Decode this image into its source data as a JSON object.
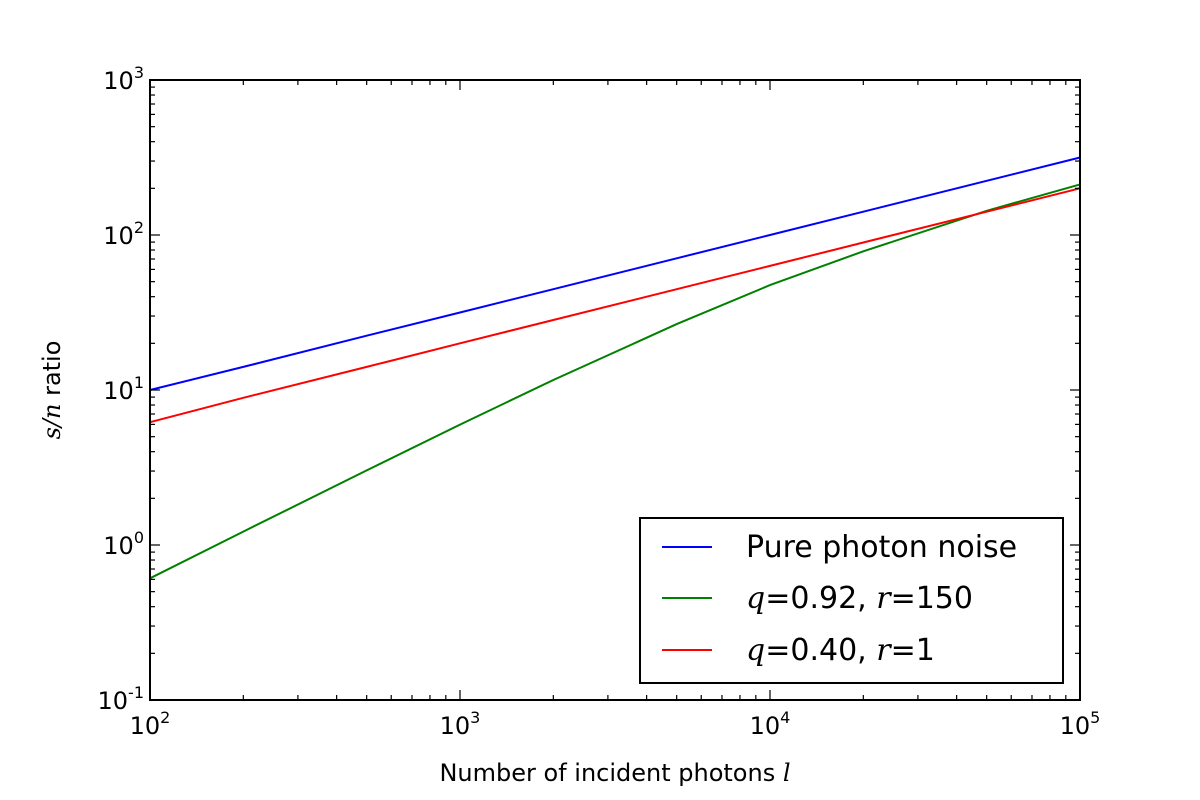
{
  "chart_data": {
    "type": "line",
    "xscale": "log",
    "yscale": "log",
    "xlim": [
      100,
      100000
    ],
    "ylim": [
      0.1,
      1000
    ],
    "xlabel": "Number of incident photons",
    "xlabel_var": "l",
    "ylabel_var": "s/n",
    "ylabel": "ratio",
    "x_ticks": [
      {
        "value": 100,
        "base": "10",
        "exp": "2"
      },
      {
        "value": 1000,
        "base": "10",
        "exp": "3"
      },
      {
        "value": 10000,
        "base": "10",
        "exp": "4"
      },
      {
        "value": 100000,
        "base": "10",
        "exp": "5"
      }
    ],
    "y_ticks": [
      {
        "value": 0.1,
        "base": "10",
        "exp": "-1"
      },
      {
        "value": 1,
        "base": "10",
        "exp": "0"
      },
      {
        "value": 10,
        "base": "10",
        "exp": "1"
      },
      {
        "value": 100,
        "base": "10",
        "exp": "2"
      },
      {
        "value": 1000,
        "base": "10",
        "exp": "3"
      }
    ],
    "series": [
      {
        "label_parts": [
          {
            "text": "Pure photon noise",
            "math": false
          }
        ],
        "color": "#0000ff",
        "points": [
          [
            100,
            10.0
          ],
          [
            200,
            14.1
          ],
          [
            500,
            22.4
          ],
          [
            1000,
            31.6
          ],
          [
            2000,
            44.7
          ],
          [
            5000,
            70.7
          ],
          [
            10000,
            100.0
          ],
          [
            20000,
            141.4
          ],
          [
            50000,
            223.6
          ],
          [
            100000,
            316.2
          ]
        ]
      },
      {
        "label_parts": [
          {
            "text": "q",
            "math": true
          },
          {
            "text": "=0.92, ",
            "math": false
          },
          {
            "text": "r",
            "math": true
          },
          {
            "text": "=150",
            "math": false
          }
        ],
        "color": "#008000",
        "points": [
          [
            100,
            0.61
          ],
          [
            200,
            1.22
          ],
          [
            500,
            3.03
          ],
          [
            1000,
            5.98
          ],
          [
            2000,
            11.6
          ],
          [
            5000,
            26.6
          ],
          [
            10000,
            47.5
          ],
          [
            20000,
            78.5
          ],
          [
            50000,
            143.2
          ],
          [
            100000,
            212.0
          ]
        ]
      },
      {
        "label_parts": [
          {
            "text": "q",
            "math": true
          },
          {
            "text": "=0.40, ",
            "math": false
          },
          {
            "text": "r",
            "math": true
          },
          {
            "text": "=1",
            "math": false
          }
        ],
        "color": "#ff0000",
        "points": [
          [
            100,
            6.2
          ],
          [
            200,
            8.9
          ],
          [
            500,
            14.1
          ],
          [
            1000,
            20.0
          ],
          [
            2000,
            28.3
          ],
          [
            5000,
            44.7
          ],
          [
            10000,
            63.2
          ],
          [
            20000,
            89.4
          ],
          [
            50000,
            141.4
          ],
          [
            100000,
            200.0
          ]
        ]
      }
    ],
    "legend_position": "lower-right",
    "grid": false
  }
}
